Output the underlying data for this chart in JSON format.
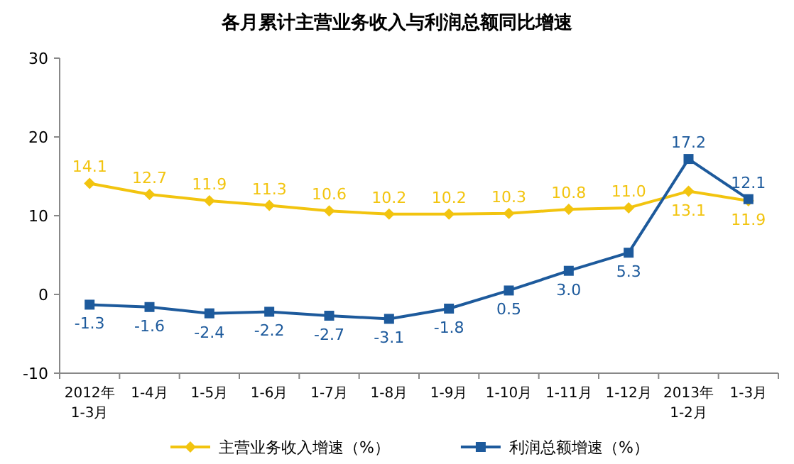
{
  "chart_data": {
    "type": "line",
    "title": "各月累计主营业务收入与利润总额同比增速",
    "categories": [
      "2012年\n1-3月",
      "1-4月",
      "1-5月",
      "1-6月",
      "1-7月",
      "1-8月",
      "1-9月",
      "1-10月",
      "1-11月",
      "1-12月",
      "2013年\n1-2月",
      "1-3月"
    ],
    "series": [
      {
        "name": "主营业务收入增速（%）",
        "color": "#f2c40f",
        "marker": "diamond",
        "values": [
          14.1,
          12.7,
          11.9,
          11.3,
          10.6,
          10.2,
          10.2,
          10.3,
          10.8,
          11.0,
          13.1,
          11.9
        ],
        "value_labels": [
          "14.1",
          "12.7",
          "11.9",
          "11.3",
          "10.6",
          "10.2",
          "10.2",
          "10.3",
          "10.8",
          "11.0",
          "13.1",
          "11.9"
        ]
      },
      {
        "name": "利润总额增速（%）",
        "color": "#1d5a9c",
        "marker": "square",
        "values": [
          -1.3,
          -1.6,
          -2.4,
          -2.2,
          -2.7,
          -3.1,
          -1.8,
          0.5,
          3.0,
          5.3,
          17.2,
          12.1
        ],
        "value_labels": [
          "-1.3",
          "-1.6",
          "-2.4",
          "-2.2",
          "-2.7",
          "-3.1",
          "-1.8",
          "0.5",
          "3.0",
          "5.3",
          "17.2",
          "12.1"
        ]
      }
    ],
    "ylim": [
      -10,
      30
    ],
    "yticks": [
      -10,
      0,
      10,
      20,
      30
    ],
    "legend": "bottom",
    "grid": false
  }
}
